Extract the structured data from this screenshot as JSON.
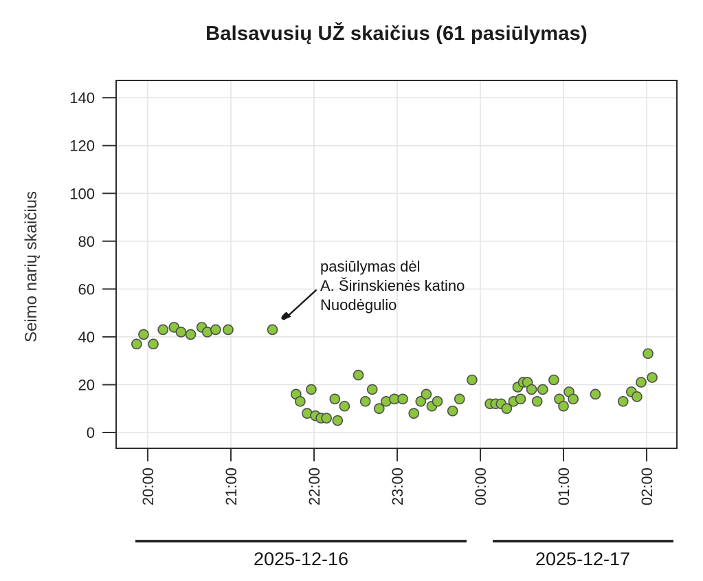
{
  "page": {
    "background": "#ffffff"
  },
  "colors": {
    "point_fill": "#8cc63e",
    "point_stroke": "#4e4e4e",
    "gridline": "#e3e3e3",
    "plot_border": "#2d2d2d",
    "tick": "#333333",
    "text": "#222222",
    "annotation_arrow": "#1a1a1a",
    "date_underline": "#1a1a1a"
  },
  "chart_data": {
    "type": "scatter",
    "title": "Balsavusių UŽ skaičius (61 pasiūlymas)",
    "ylabel": "Seimo narių skaičius",
    "xlabel": "",
    "grid": true,
    "legend": "none",
    "ylim": [
      -7,
      147
    ],
    "xlim_hours": [
      19.62,
      26.36
    ],
    "y_ticks": [
      0,
      20,
      40,
      60,
      80,
      100,
      120,
      140
    ],
    "x_ticks": [
      {
        "hour": 20,
        "label": "20:00"
      },
      {
        "hour": 21,
        "label": "21:00"
      },
      {
        "hour": 22,
        "label": "22:00"
      },
      {
        "hour": 23,
        "label": "23:00"
      },
      {
        "hour": 24,
        "label": "00:00"
      },
      {
        "hour": 25,
        "label": "01:00"
      },
      {
        "hour": 26,
        "label": "02:00"
      }
    ],
    "annotation": {
      "lines": [
        "pasiūlymas dėl",
        "A. Širinskienės katino",
        "Nuodėgulio"
      ],
      "target_date": "2025-12-16",
      "target_time": "21:30",
      "target_value": 43
    },
    "day_ranges": [
      {
        "label": "2025-12-16"
      },
      {
        "label": "2025-12-17"
      }
    ],
    "points": [
      {
        "date": "2025-12-16",
        "time": "19:52",
        "value": 37
      },
      {
        "date": "2025-12-16",
        "time": "19:57",
        "value": 41
      },
      {
        "date": "2025-12-16",
        "time": "20:04",
        "value": 37
      },
      {
        "date": "2025-12-16",
        "time": "20:11",
        "value": 43
      },
      {
        "date": "2025-12-16",
        "time": "20:19",
        "value": 44
      },
      {
        "date": "2025-12-16",
        "time": "20:24",
        "value": 42
      },
      {
        "date": "2025-12-16",
        "time": "20:31",
        "value": 41
      },
      {
        "date": "2025-12-16",
        "time": "20:39",
        "value": 44
      },
      {
        "date": "2025-12-16",
        "time": "20:43",
        "value": 42
      },
      {
        "date": "2025-12-16",
        "time": "20:49",
        "value": 43
      },
      {
        "date": "2025-12-16",
        "time": "20:58",
        "value": 43
      },
      {
        "date": "2025-12-16",
        "time": "21:30",
        "value": 43
      },
      {
        "date": "2025-12-16",
        "time": "21:47",
        "value": 16
      },
      {
        "date": "2025-12-16",
        "time": "21:50",
        "value": 13
      },
      {
        "date": "2025-12-16",
        "time": "21:55",
        "value": 8
      },
      {
        "date": "2025-12-16",
        "time": "21:58",
        "value": 18
      },
      {
        "date": "2025-12-16",
        "time": "22:01",
        "value": 7
      },
      {
        "date": "2025-12-16",
        "time": "22:05",
        "value": 6
      },
      {
        "date": "2025-12-16",
        "time": "22:09",
        "value": 6
      },
      {
        "date": "2025-12-16",
        "time": "22:15",
        "value": 14
      },
      {
        "date": "2025-12-16",
        "time": "22:17",
        "value": 5
      },
      {
        "date": "2025-12-16",
        "time": "22:22",
        "value": 11
      },
      {
        "date": "2025-12-16",
        "time": "22:32",
        "value": 24
      },
      {
        "date": "2025-12-16",
        "time": "22:37",
        "value": 13
      },
      {
        "date": "2025-12-16",
        "time": "22:42",
        "value": 18
      },
      {
        "date": "2025-12-16",
        "time": "22:47",
        "value": 10
      },
      {
        "date": "2025-12-16",
        "time": "22:52",
        "value": 13
      },
      {
        "date": "2025-12-16",
        "time": "22:58",
        "value": 14
      },
      {
        "date": "2025-12-16",
        "time": "23:04",
        "value": 14
      },
      {
        "date": "2025-12-16",
        "time": "23:12",
        "value": 8
      },
      {
        "date": "2025-12-16",
        "time": "23:17",
        "value": 13
      },
      {
        "date": "2025-12-16",
        "time": "23:21",
        "value": 16
      },
      {
        "date": "2025-12-16",
        "time": "23:25",
        "value": 11
      },
      {
        "date": "2025-12-16",
        "time": "23:29",
        "value": 13
      },
      {
        "date": "2025-12-16",
        "time": "23:40",
        "value": 9
      },
      {
        "date": "2025-12-16",
        "time": "23:45",
        "value": 14
      },
      {
        "date": "2025-12-16",
        "time": "23:54",
        "value": 22
      },
      {
        "date": "2025-12-17",
        "time": "00:07",
        "value": 12
      },
      {
        "date": "2025-12-17",
        "time": "00:11",
        "value": 12
      },
      {
        "date": "2025-12-17",
        "time": "00:15",
        "value": 12
      },
      {
        "date": "2025-12-17",
        "time": "00:19",
        "value": 10
      },
      {
        "date": "2025-12-17",
        "time": "00:24",
        "value": 13
      },
      {
        "date": "2025-12-17",
        "time": "00:27",
        "value": 19
      },
      {
        "date": "2025-12-17",
        "time": "00:29",
        "value": 14
      },
      {
        "date": "2025-12-17",
        "time": "00:31",
        "value": 21
      },
      {
        "date": "2025-12-17",
        "time": "00:34",
        "value": 21
      },
      {
        "date": "2025-12-17",
        "time": "00:37",
        "value": 18
      },
      {
        "date": "2025-12-17",
        "time": "00:41",
        "value": 13
      },
      {
        "date": "2025-12-17",
        "time": "00:45",
        "value": 18
      },
      {
        "date": "2025-12-17",
        "time": "00:53",
        "value": 22
      },
      {
        "date": "2025-12-17",
        "time": "00:57",
        "value": 14
      },
      {
        "date": "2025-12-17",
        "time": "01:00",
        "value": 11
      },
      {
        "date": "2025-12-17",
        "time": "01:04",
        "value": 17
      },
      {
        "date": "2025-12-17",
        "time": "01:07",
        "value": 14
      },
      {
        "date": "2025-12-17",
        "time": "01:23",
        "value": 16
      },
      {
        "date": "2025-12-17",
        "time": "01:43",
        "value": 13
      },
      {
        "date": "2025-12-17",
        "time": "01:49",
        "value": 17
      },
      {
        "date": "2025-12-17",
        "time": "01:53",
        "value": 15
      },
      {
        "date": "2025-12-17",
        "time": "01:56",
        "value": 21
      },
      {
        "date": "2025-12-17",
        "time": "02:01",
        "value": 33
      },
      {
        "date": "2025-12-17",
        "time": "02:04",
        "value": 23
      }
    ]
  }
}
